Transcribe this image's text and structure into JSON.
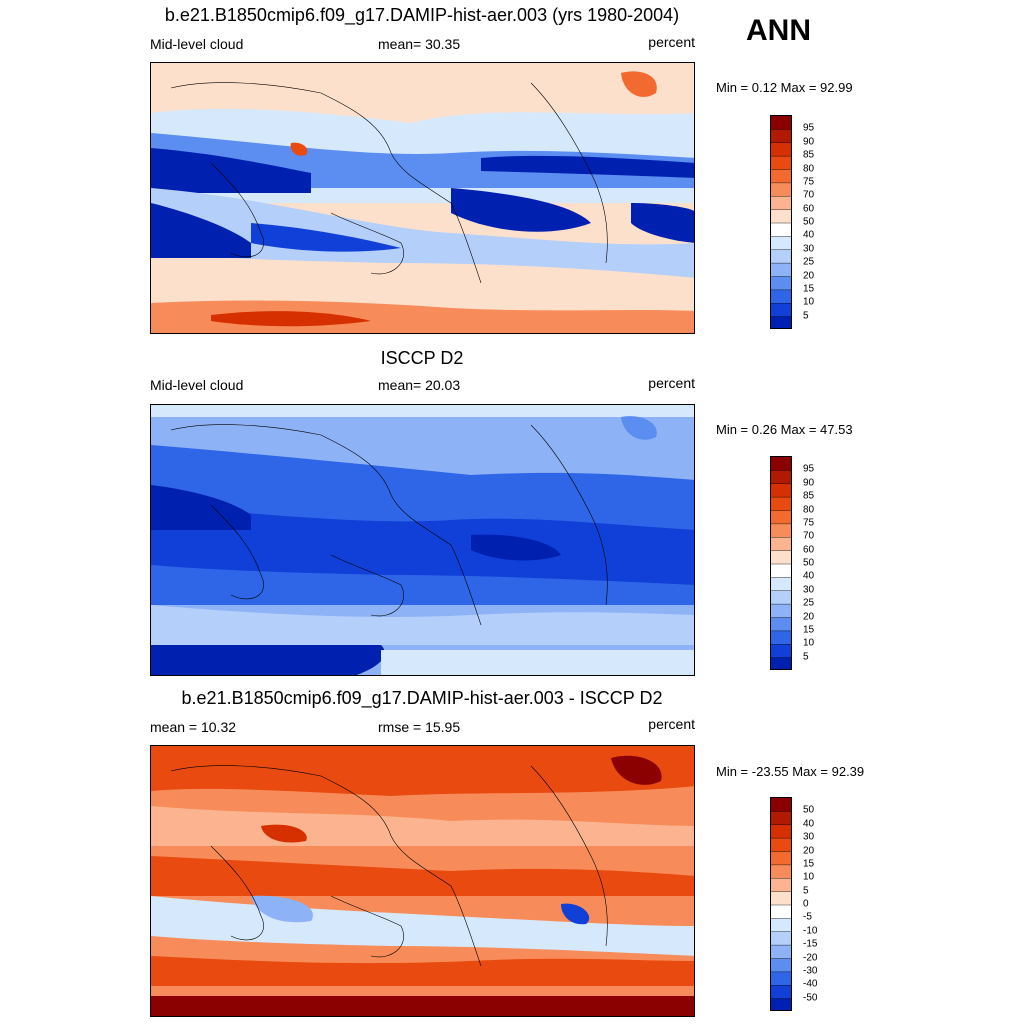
{
  "season": "ANN",
  "panels": [
    {
      "title": "b.e21.B1850cmip6.f09_g17.DAMIP-hist-aer.003 (yrs 1980-2004)",
      "left_label": "Mid-level cloud",
      "center_label": "mean=  30.35",
      "right_label": "percent",
      "minmax": "Min =   0.12 Max =  92.99",
      "colorbar_labels": [
        "95",
        "90",
        "85",
        "80",
        "75",
        "70",
        "60",
        "50",
        "40",
        "30",
        "25",
        "20",
        "15",
        "10",
        "5"
      ],
      "colorbar_colors": [
        "#8b0000",
        "#b01a00",
        "#d63000",
        "#e84a10",
        "#f26a30",
        "#f78c5a",
        "#fbb48f",
        "#fde0cc",
        "#ffffff",
        "#d6e8fc",
        "#b3cffa",
        "#8eb2f6",
        "#5b8ef0",
        "#2f66e8",
        "#1040d8",
        "#0020b0"
      ]
    },
    {
      "title": "ISCCP D2",
      "left_label": "Mid-level cloud",
      "center_label": "mean=  20.03",
      "right_label": "percent",
      "minmax": "Min =   0.26 Max =  47.53",
      "colorbar_labels": [
        "95",
        "90",
        "85",
        "80",
        "75",
        "70",
        "60",
        "50",
        "40",
        "30",
        "25",
        "20",
        "15",
        "10",
        "5"
      ],
      "colorbar_colors": [
        "#8b0000",
        "#b01a00",
        "#d63000",
        "#e84a10",
        "#f26a30",
        "#f78c5a",
        "#fbb48f",
        "#fde0cc",
        "#ffffff",
        "#d6e8fc",
        "#b3cffa",
        "#8eb2f6",
        "#5b8ef0",
        "#2f66e8",
        "#1040d8",
        "#0020b0"
      ]
    },
    {
      "title": "b.e21.B1850cmip6.f09_g17.DAMIP-hist-aer.003 - ISCCP D2",
      "left_label": "mean =  10.32",
      "center_label": "rmse =  15.95",
      "right_label": "percent",
      "minmax": "Min = -23.55 Max =  92.39",
      "colorbar_labels": [
        "50",
        "40",
        "30",
        "20",
        "15",
        "10",
        "5",
        "0",
        "-5",
        "-10",
        "-15",
        "-20",
        "-30",
        "-40",
        "-50"
      ],
      "colorbar_colors": [
        "#8b0000",
        "#b01a00",
        "#d63000",
        "#e84a10",
        "#f26a30",
        "#f78c5a",
        "#fbb48f",
        "#fde0cc",
        "#ffffff",
        "#d6e8fc",
        "#b3cffa",
        "#8eb2f6",
        "#5b8ef0",
        "#2f66e8",
        "#1040d8",
        "#0020b0"
      ]
    }
  ]
}
